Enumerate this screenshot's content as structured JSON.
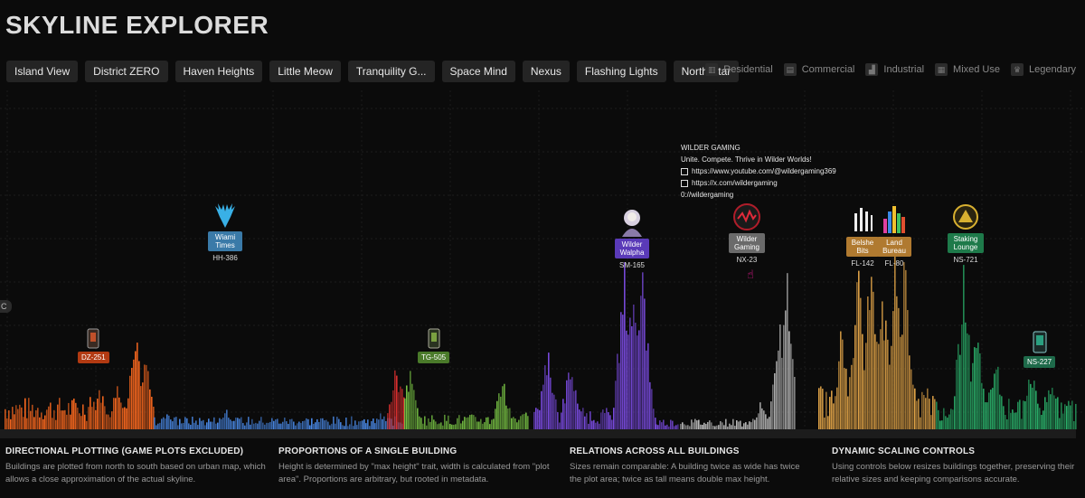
{
  "title": "SKYLINE EXPLORER",
  "tabs": [
    "Island View",
    "District ZERO",
    "Haven Heights",
    "Little Meow",
    "Tranquility G...",
    "Space Mind",
    "Nexus",
    "Flashing Lights",
    "North Star"
  ],
  "legend": [
    "Residential",
    "Commercial",
    "Industrial",
    "Mixed Use",
    "Legendary"
  ],
  "left_stub_label": "C",
  "colors": {
    "dz": "#ff6a1f",
    "hh": "#4a8ae8",
    "lm": "#e03030",
    "tg": "#76c043",
    "sm": "#7a4be0",
    "nx": "#bdbdbd",
    "fl": "#e3a548",
    "ns": "#2ab06a"
  },
  "markers": [
    {
      "label": "",
      "code": "DZ-251",
      "badge_color": "#b23a12",
      "icon": "card-icon"
    },
    {
      "label": "Wiami Times",
      "code": "HH-386",
      "badge_color": "#3a7aa8",
      "icon": "stag-icon"
    },
    {
      "label": "",
      "code": "TG-505",
      "badge_color": "#4a7a2a",
      "icon": "card-icon"
    },
    {
      "label": "Wilder Walpha",
      "code": "SM-165",
      "badge_color": "#5a3ab8",
      "icon": "avatar-icon"
    },
    {
      "label": "Wilder Gaming",
      "code": "NX-23",
      "badge_color": "#6a6a6a",
      "icon": "wg-logo-icon"
    },
    {
      "label": "Belshe Bits",
      "code": "FL-142",
      "badge_color": "#b07a30",
      "icon": "bars-icon"
    },
    {
      "label": "Land Bureau",
      "code": "FL-80",
      "badge_color": "#b07a30",
      "icon": "chart-icon"
    },
    {
      "label": "Staking Lounge",
      "code": "NS-721",
      "badge_color": "#1e7a4a",
      "icon": "lounge-icon"
    },
    {
      "label": "",
      "code": "NS-227",
      "badge_color": "#1e6a4a",
      "icon": "card-icon"
    }
  ],
  "tooltip": {
    "name": "WILDER GAMING",
    "tagline": "Unite. Compete. Thrive in Wilder Worlds!",
    "link1": "https://www.youtube.com/@wildergaming369",
    "link2": "https://x.com/wildergaming",
    "link3": "0://wildergaming"
  },
  "footer": [
    {
      "title": "DIRECTIONAL PLOTTING (GAME PLOTS EXCLUDED)",
      "text": "Buildings are plotted from north to south based on urban map, which allows a close approximation of the actual skyline."
    },
    {
      "title": "PROPORTIONS OF A SINGLE BUILDING",
      "text": "Height is determined by \"max height\" trait, width is calculated from \"plot area\". Proportions are arbitrary, but rooted in metadata."
    },
    {
      "title": "RELATIONS ACROSS ALL BUILDINGS",
      "text": "Sizes remain comparable: A building twice as wide has twice the plot area; twice as tall means double max height."
    },
    {
      "title": "DYNAMIC SCALING CONTROLS",
      "text": "Using controls below resizes buildings together, preserving their relative sizes and keeping comparisons accurate."
    }
  ]
}
